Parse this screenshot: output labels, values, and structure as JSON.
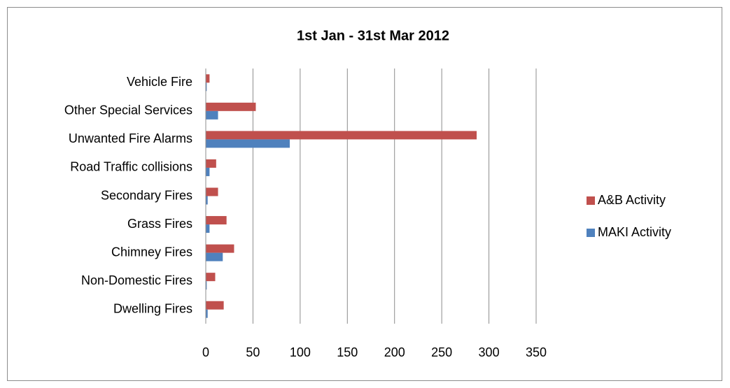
{
  "chart_data": {
    "type": "bar",
    "orientation": "horizontal",
    "title": "1st Jan - 31st Mar 2012",
    "categories": [
      "Dwelling Fires",
      "Non-Domestic Fires",
      "Chimney Fires",
      "Grass Fires",
      "Secondary Fires",
      "Road Traffic collisions",
      "Unwanted Fire Alarms",
      "Other Special Services",
      "Vehicle Fire"
    ],
    "series": [
      {
        "name": "A&B Activity",
        "color": "#c0504d",
        "values": [
          19,
          10,
          30,
          22,
          13,
          11,
          287,
          53,
          4
        ]
      },
      {
        "name": "MAKI Activity",
        "color": "#4f81bd",
        "values": [
          2,
          1,
          18,
          4,
          2,
          4,
          89,
          13,
          1
        ]
      }
    ],
    "xlim": [
      0,
      350
    ],
    "xticks": [
      0,
      50,
      100,
      150,
      200,
      250,
      300,
      350
    ],
    "grid": true,
    "legend": "right"
  }
}
